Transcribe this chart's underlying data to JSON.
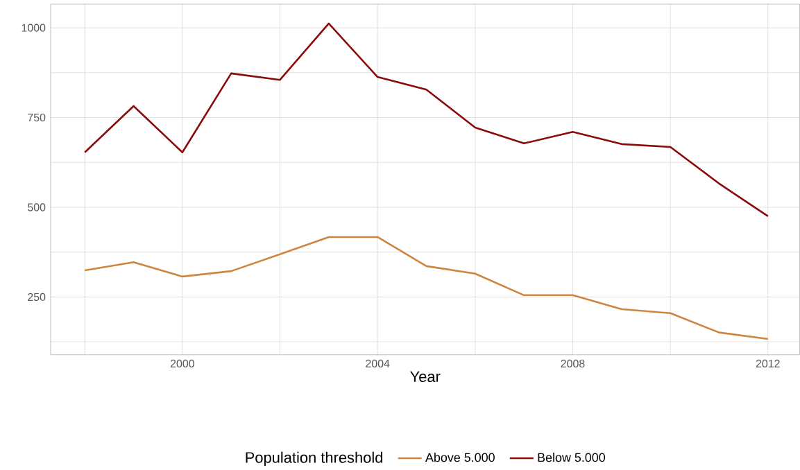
{
  "chart_data": {
    "type": "line",
    "xlabel": "Year",
    "legend_title": "Population threshold",
    "x": [
      1998,
      1999,
      2000,
      2001,
      2002,
      2003,
      2004,
      2005,
      2006,
      2007,
      2008,
      2009,
      2010,
      2011,
      2012
    ],
    "series": [
      {
        "name": "Above 5.000",
        "color": "#cd853f",
        "values": [
          324,
          347,
          307,
          322,
          369,
          417,
          417,
          336,
          315,
          255,
          255,
          216,
          205,
          151,
          133
        ]
      },
      {
        "name": "Below 5.000",
        "color": "#8b0a0a",
        "values": [
          653,
          782,
          653,
          873,
          855,
          1012,
          863,
          828,
          722,
          678,
          710,
          676,
          668,
          566,
          475
        ]
      }
    ],
    "xlim": [
      1997.3,
      2012.65
    ],
    "ylim": [
      89,
      1066
    ],
    "xticks": [
      {
        "value": 1998,
        "label": null
      },
      2000,
      {
        "value": 2002,
        "label": null
      },
      2004,
      {
        "value": 2006,
        "label": null
      },
      2008,
      {
        "value": 2010,
        "label": null
      },
      2012
    ],
    "yticks": [
      {
        "value": 125,
        "label": null
      },
      250,
      {
        "value": 375,
        "label": null
      },
      500,
      {
        "value": 625,
        "label": null
      },
      750,
      {
        "value": 875,
        "label": null
      },
      1000
    ],
    "grid": true,
    "legend": "bottom",
    "marker": "none",
    "line_style": "solid"
  }
}
